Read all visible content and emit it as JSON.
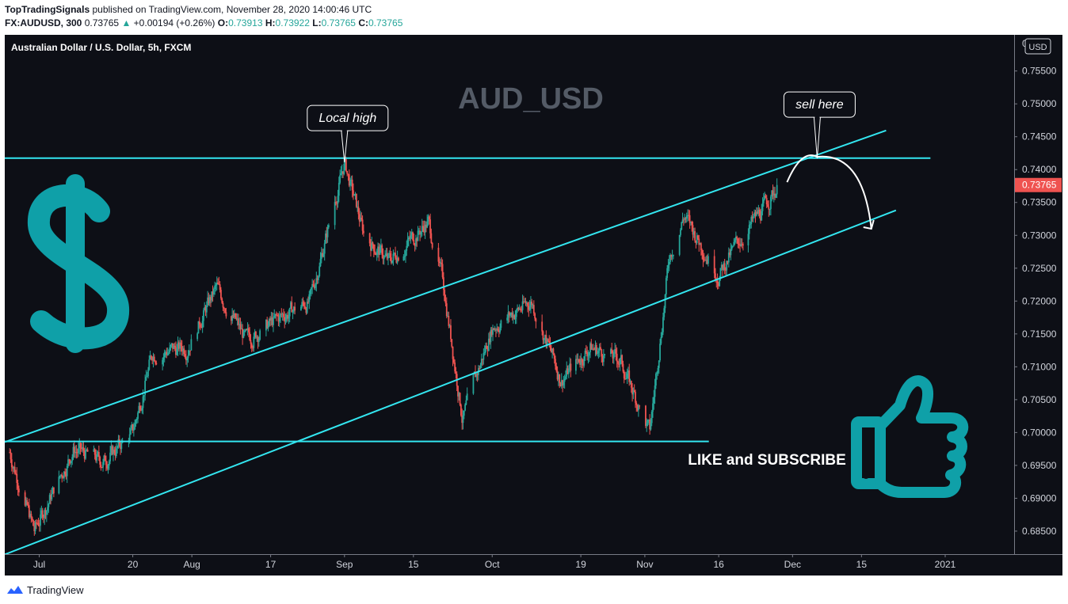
{
  "header": {
    "publisher": "TopTradingSignals",
    "published_text": "published on TradingView.com, November 28, 2020 14:00:46 UTC",
    "symbol": "FX:AUDUSD, 300",
    "last": "0.73765",
    "change_arrow": "▲",
    "change": "+0.00194 (+0.26%)",
    "o_label": "O:",
    "o_value": "0.73913",
    "h_label": "H:",
    "h_value": "0.73922",
    "l_label": "L:",
    "l_value": "0.73765",
    "c_label": "C:",
    "c_value": "0.73765"
  },
  "footer": {
    "brand": "TradingView"
  },
  "colors": {
    "background": "#0d0f16",
    "up": "#26a69a",
    "down": "#ef5350",
    "lines": "#33e6f0",
    "accent": "#0fa0a8"
  },
  "chart_data": {
    "type": "candlestick",
    "title": "Australian Dollar / U.S. Dollar, 5h, FXCM",
    "watermark": "AUD_USD",
    "currency_badge": "USD",
    "last_price_label": "0.73765",
    "top_tick_partial": "0",
    "ylim": [
      0.6815,
      0.7605
    ],
    "y_ticks": [
      0.685,
      0.69,
      0.695,
      0.7,
      0.705,
      0.71,
      0.715,
      0.72,
      0.725,
      0.73,
      0.735,
      0.74,
      0.745,
      0.75,
      0.755
    ],
    "y_tick_labels": [
      "0.68500",
      "0.69000",
      "0.69500",
      "0.70000",
      "0.70500",
      "0.71000",
      "0.71500",
      "0.72000",
      "0.72500",
      "0.73000",
      "0.73500",
      "0.74000",
      "0.74500",
      "0.75000",
      "0.75500"
    ],
    "x_ticks": [
      {
        "label": "Jul",
        "date": "2020-07-01"
      },
      {
        "label": "20",
        "date": "2020-07-20"
      },
      {
        "label": "Aug",
        "date": "2020-08-01"
      },
      {
        "label": "17",
        "date": "2020-08-17"
      },
      {
        "label": "Sep",
        "date": "2020-09-01"
      },
      {
        "label": "15",
        "date": "2020-09-15"
      },
      {
        "label": "Oct",
        "date": "2020-10-01"
      },
      {
        "label": "19",
        "date": "2020-10-19"
      },
      {
        "label": "Nov",
        "date": "2020-11-01"
      },
      {
        "label": "16",
        "date": "2020-11-16"
      },
      {
        "label": "Dec",
        "date": "2020-12-01"
      },
      {
        "label": "15",
        "date": "2020-12-15"
      },
      {
        "label": "2021",
        "date": "2021-01-01"
      }
    ],
    "xlim": [
      "2020-06-24",
      "2021-01-15"
    ],
    "price_path": [
      {
        "date": "2020-06-25",
        "price": 0.697
      },
      {
        "date": "2020-06-30",
        "price": 0.685
      },
      {
        "date": "2020-07-08",
        "price": 0.6975
      },
      {
        "date": "2020-07-14",
        "price": 0.6955
      },
      {
        "date": "2020-07-20",
        "price": 0.7
      },
      {
        "date": "2020-07-24",
        "price": 0.712
      },
      {
        "date": "2020-07-31",
        "price": 0.713
      },
      {
        "date": "2020-08-06",
        "price": 0.722
      },
      {
        "date": "2020-08-12",
        "price": 0.714
      },
      {
        "date": "2020-08-20",
        "price": 0.718
      },
      {
        "date": "2020-08-25",
        "price": 0.72
      },
      {
        "date": "2020-08-31",
        "price": 0.738
      },
      {
        "date": "2020-09-01",
        "price": 0.741
      },
      {
        "date": "2020-09-05",
        "price": 0.73
      },
      {
        "date": "2020-09-10",
        "price": 0.726
      },
      {
        "date": "2020-09-18",
        "price": 0.732
      },
      {
        "date": "2020-09-21",
        "price": 0.723
      },
      {
        "date": "2020-09-25",
        "price": 0.702
      },
      {
        "date": "2020-10-01",
        "price": 0.716
      },
      {
        "date": "2020-10-09",
        "price": 0.72
      },
      {
        "date": "2020-10-15",
        "price": 0.708
      },
      {
        "date": "2020-10-21",
        "price": 0.713
      },
      {
        "date": "2020-10-27",
        "price": 0.711
      },
      {
        "date": "2020-11-02",
        "price": 0.7
      },
      {
        "date": "2020-11-06",
        "price": 0.727
      },
      {
        "date": "2020-11-09",
        "price": 0.733
      },
      {
        "date": "2020-11-16",
        "price": 0.724
      },
      {
        "date": "2020-11-20",
        "price": 0.729
      },
      {
        "date": "2020-11-25",
        "price": 0.734
      },
      {
        "date": "2020-11-28",
        "price": 0.73765
      }
    ],
    "trendlines": [
      {
        "name": "upper-channel",
        "from": {
          "date": "2020-06-24",
          "price": 0.69855
        },
        "to": {
          "date": "2020-12-20",
          "price": 0.74595
        }
      },
      {
        "name": "lower-channel",
        "from": {
          "date": "2020-06-24",
          "price": 0.68145
        },
        "to": {
          "date": "2020-12-22",
          "price": 0.7338
        }
      },
      {
        "name": "resistance",
        "from": {
          "date": "2020-06-24",
          "price": 0.74175
        },
        "to": {
          "date": "2020-12-29",
          "price": 0.74175
        }
      },
      {
        "name": "support",
        "from": {
          "date": "2020-06-24",
          "price": 0.69865
        },
        "to": {
          "date": "2020-11-14",
          "price": 0.69865
        }
      }
    ],
    "annotations": [
      {
        "name": "local-high",
        "text": "Local high",
        "date": "2020-09-01",
        "price": 0.7411
      },
      {
        "name": "sell-here",
        "text": "sell here",
        "date": "2020-12-06",
        "price": 0.7417
      }
    ],
    "projection": {
      "from": {
        "date": "2020-12-06",
        "price": 0.7417
      },
      "to": {
        "date": "2020-12-17",
        "price": 0.731
      }
    },
    "cta_text": "LIKE and SUBSCRIBE",
    "dollar_icon": "dollar-sign-icon",
    "thumb_icon": "thumbs-up-icon"
  }
}
